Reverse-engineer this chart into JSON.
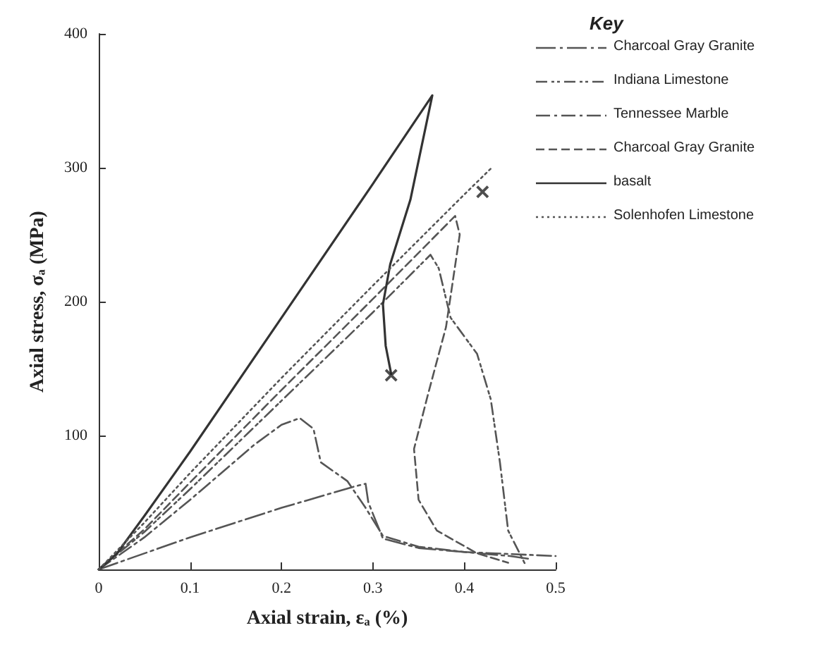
{
  "chart_data": {
    "type": "line",
    "xlabel": "Axial strain, εₐ (%)",
    "ylabel": "Axial stress, σₐ (MPa)",
    "legend_title": "Key",
    "legend": "top right",
    "grid": false,
    "marker": "none",
    "xlim": [
      0,
      0.5
    ],
    "xticks": [
      0,
      0.1,
      0.2,
      0.3,
      0.4,
      0.5
    ],
    "ylim": [
      0,
      400
    ],
    "yticks": [
      100,
      200,
      300,
      400
    ],
    "series": [
      {
        "name": "Charcoal Gray Granite",
        "color": "#555555",
        "line_style": "longdashdot",
        "x": [
          0,
          0.1,
          0.2,
          0.28,
          0.292,
          0.295,
          0.311,
          0.35,
          0.4,
          0.45,
          0.47
        ],
        "values": [
          0,
          24,
          46,
          62,
          64,
          50,
          23,
          16,
          13,
          10,
          8
        ]
      },
      {
        "name": "Indiana Limestone",
        "color": "#555555",
        "line_style": "dashdotdot",
        "x": [
          0,
          0.05,
          0.1,
          0.2,
          0.3,
          0.363,
          0.372,
          0.385,
          0.414,
          0.429,
          0.439,
          0.448,
          0.468
        ],
        "values": [
          0,
          28,
          60,
          126,
          192,
          235,
          225,
          188,
          161,
          127,
          80,
          29,
          2
        ]
      },
      {
        "name": "Tennessee Marble",
        "color": "#555555",
        "line_style": "dashdot",
        "x": [
          0,
          0.05,
          0.1,
          0.17,
          0.2,
          0.22,
          0.235,
          0.243,
          0.272,
          0.292,
          0.311,
          0.35,
          0.4,
          0.5
        ],
        "values": [
          0,
          24,
          52,
          93,
          108,
          113,
          105,
          80,
          66,
          46,
          25,
          17,
          13,
          10
        ]
      },
      {
        "name": "Charcoal Gray Granite",
        "color": "#555555",
        "line_style": "dashed",
        "x": [
          0,
          0.05,
          0.1,
          0.2,
          0.3,
          0.39,
          0.395,
          0.38,
          0.36,
          0.345,
          0.35,
          0.37,
          0.414,
          0.448
        ],
        "values": [
          0,
          30,
          65,
          134,
          202,
          264,
          250,
          181,
          130,
          90,
          52,
          29,
          12,
          5
        ]
      },
      {
        "name": "basalt",
        "color": "#333333",
        "line_style": "solid",
        "x": [
          0,
          0.02,
          0.05,
          0.1,
          0.2,
          0.3,
          0.365,
          0.341,
          0.319,
          0.311,
          0.314,
          0.32
        ],
        "values": [
          0,
          12,
          40,
          88,
          188,
          288,
          354,
          276,
          228,
          198,
          167,
          146
        ]
      },
      {
        "name": "Solenhofen Limestone",
        "color": "#555555",
        "line_style": "dotted",
        "x": [
          0,
          0.05,
          0.1,
          0.2,
          0.3,
          0.4,
          0.43
        ],
        "values": [
          0,
          35,
          72,
          143,
          212,
          280,
          300
        ]
      },
      {
        "type": "scatter",
        "marker": "cross",
        "color": "#222222",
        "x": [
          0.32,
          0.42
        ],
        "values": [
          145,
          282
        ]
      }
    ]
  }
}
